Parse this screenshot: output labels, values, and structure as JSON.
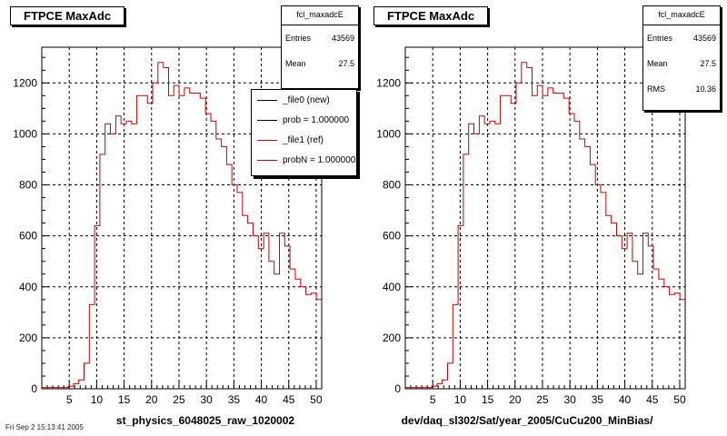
{
  "colors": {
    "ref": "#cc0000",
    "new": "#000000",
    "grid": "#000000",
    "background": "#ffffff"
  },
  "footer_text": "Fri Sep 2 15:13:41 2005",
  "chart_data": [
    {
      "type": "histogram",
      "title": "FTPCE MaxAdc",
      "xlabel": "st_physics_6048025_raw_1020002",
      "ylabel": "",
      "xlim": [
        0,
        51
      ],
      "ylim": [
        0,
        1340
      ],
      "xticks": [
        "5",
        "10",
        "15",
        "20",
        "25",
        "30",
        "35",
        "40",
        "45",
        "50"
      ],
      "yticks": [
        "0",
        "200",
        "400",
        "600",
        "800",
        "1000",
        "1200"
      ],
      "grid": true,
      "stats": {
        "name": "fcl_maxadcE",
        "entries_label": "Entries",
        "entries": "43569",
        "mean_label": "Mean",
        "mean": "27.5"
      },
      "legend": {
        "placement": "top-right",
        "entries": [
          {
            "label": "_file0 (new)",
            "color": "#000000"
          },
          {
            "label": "prob = 1.000000",
            "color": "#000000"
          },
          {
            "label": "_file1 (ref)",
            "color": "#cc0000"
          },
          {
            "label": "probN = 1.000000",
            "color": "#cc0000"
          }
        ]
      },
      "series": [
        {
          "name": "_file1 (ref)",
          "color": "#cc0000",
          "values": [
            5,
            5,
            5,
            5,
            5,
            10,
            20,
            35,
            100,
            330,
            640,
            920,
            1040,
            1000,
            1070,
            1040,
            1050,
            1040,
            1150,
            1150,
            1120,
            1200,
            1280,
            1260,
            1150,
            1190,
            1150,
            1180,
            1160,
            1160,
            1140,
            1080,
            1050,
            980,
            950,
            880,
            800,
            770,
            680,
            650,
            600,
            550,
            610,
            500,
            450,
            610,
            560,
            470,
            430,
            400,
            370,
            375,
            350
          ]
        }
      ]
    },
    {
      "type": "histogram",
      "title": "FTPCE MaxAdc",
      "xlabel": "dev/daq_sl302/Sat/year_2005/CuCu200_MinBias/",
      "ylabel": "",
      "xlim": [
        0,
        51
      ],
      "ylim": [
        0,
        1340
      ],
      "xticks": [
        "5",
        "10",
        "15",
        "20",
        "25",
        "30",
        "35",
        "40",
        "45",
        "50"
      ],
      "yticks": [
        "0",
        "200",
        "400",
        "600",
        "800",
        "1000",
        "1200"
      ],
      "grid": true,
      "stats": {
        "name": "fcl_maxadcE",
        "entries_label": "Entries",
        "entries": "43569",
        "mean_label": "Mean",
        "mean": "27.5",
        "rms_label": "RMS",
        "rms": "10.36"
      },
      "series": [
        {
          "name": "",
          "color": "#cc0000",
          "values": [
            5,
            5,
            5,
            5,
            5,
            10,
            20,
            35,
            100,
            330,
            640,
            920,
            1040,
            1000,
            1070,
            1040,
            1050,
            1040,
            1150,
            1150,
            1120,
            1200,
            1280,
            1260,
            1150,
            1190,
            1150,
            1180,
            1160,
            1160,
            1140,
            1080,
            1050,
            980,
            950,
            880,
            800,
            770,
            680,
            650,
            600,
            550,
            610,
            500,
            450,
            610,
            560,
            470,
            430,
            400,
            370,
            375,
            350
          ]
        }
      ]
    }
  ]
}
